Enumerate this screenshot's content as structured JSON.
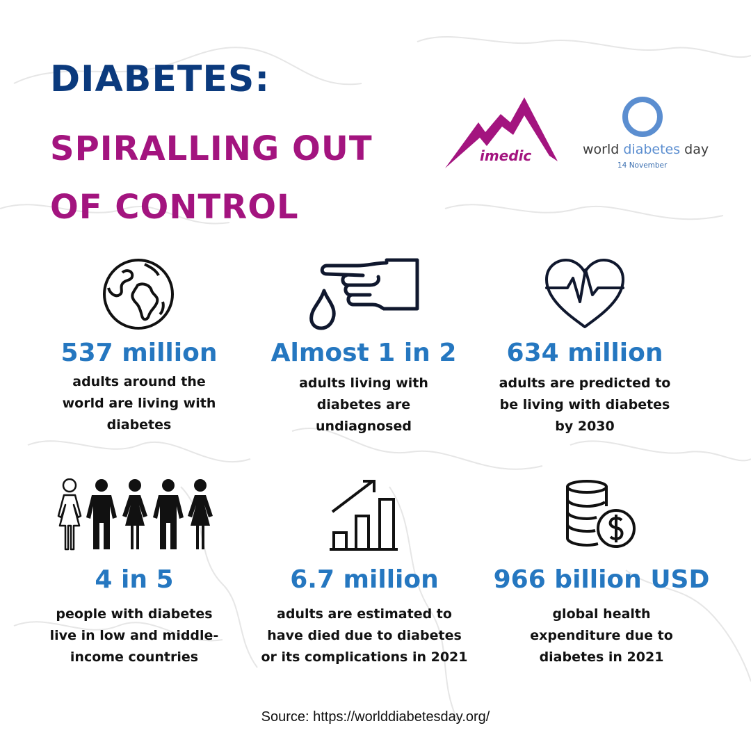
{
  "header": {
    "title_line1": "DIABETES:",
    "title_line2": "SPIRALLING OUT OF CONTROL"
  },
  "logos": {
    "imedic": {
      "text": "imedic",
      "icon": "mountain-logo-icon"
    },
    "world_diabetes_day": {
      "prefix": "world ",
      "accent": "diabetes",
      "suffix": " day",
      "date": "14 November",
      "icon": "blue-circle-icon"
    }
  },
  "stats": [
    {
      "icon": "globe-icon",
      "value": "537 million",
      "description": "adults around the world are living with diabetes"
    },
    {
      "icon": "finger-blood-drop-icon",
      "value": "Almost 1 in 2",
      "description": "adults living with diabetes are undiagnosed"
    },
    {
      "icon": "heartbeat-icon",
      "value": "634 million",
      "description": "adults are predicted to be living with diabetes by 2030"
    },
    {
      "icon": "people-icon",
      "value": "4 in 5",
      "description": "people with diabetes live in low and middle-income countries"
    },
    {
      "icon": "growth-chart-icon",
      "value": "6.7 million",
      "description": "adults are estimated to have died due to diabetes or its complications in 2021"
    },
    {
      "icon": "coins-dollar-icon",
      "value": "966 billion USD",
      "description": "global health expenditure due to diabetes in 2021"
    }
  ],
  "footer": {
    "source": "Source: https://worlddiabetesday.org/"
  },
  "colors": {
    "navy": "#0b3a7d",
    "magenta": "#a3147f",
    "stat_blue": "#2577c0",
    "wdd_blue": "#5b8ed0"
  }
}
